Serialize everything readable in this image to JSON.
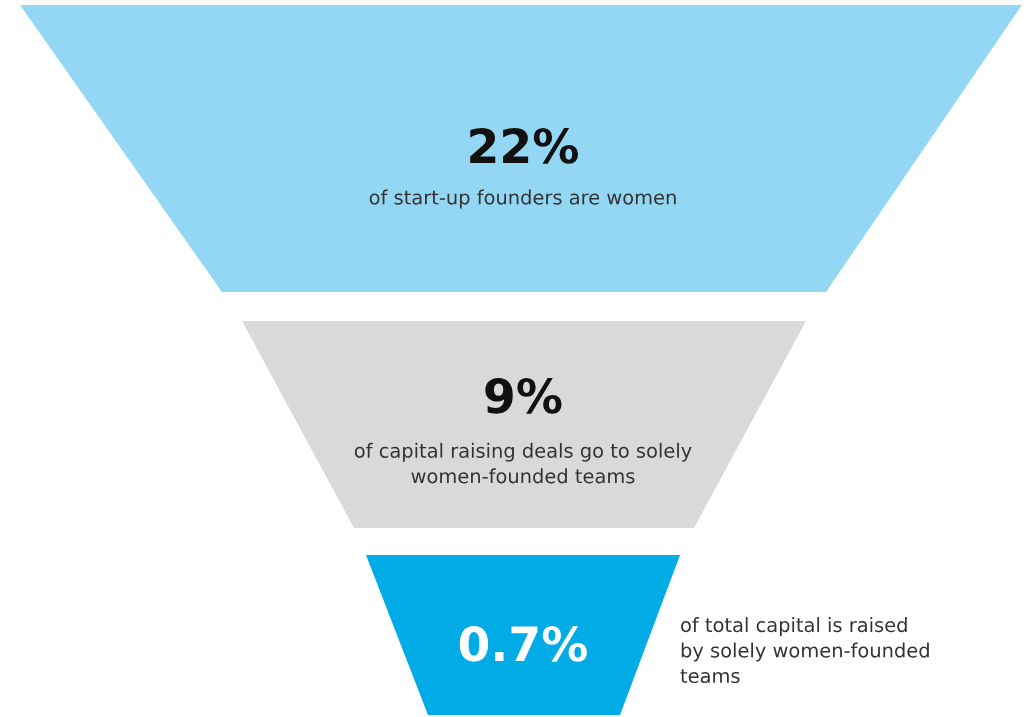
{
  "chart_data": {
    "type": "other",
    "categories": [
      "of start-up founders are women",
      "of capital raising deals go to solely women-founded teams",
      "of total capital is raised by solely women-founded teams"
    ],
    "values": [
      22,
      9,
      0.7
    ],
    "value_labels": [
      "22%",
      "9%",
      "0.7%"
    ],
    "colors": [
      "#93d7f5",
      "#d9d9d9",
      "#00abe6"
    ]
  }
}
